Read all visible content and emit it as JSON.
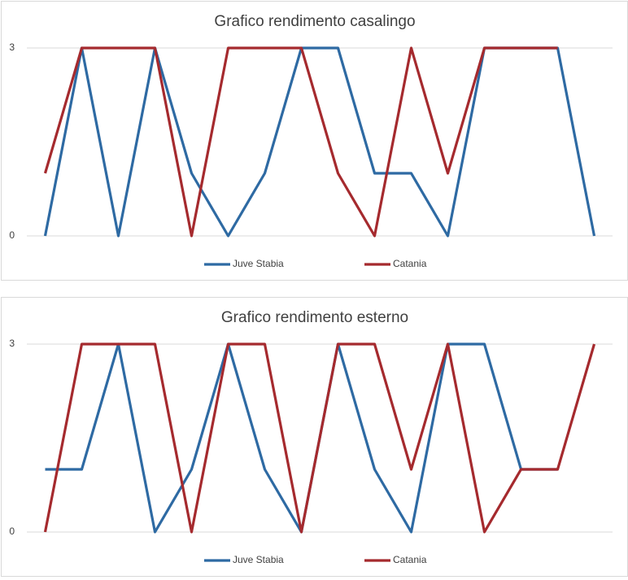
{
  "chart_data": [
    {
      "type": "line",
      "title": "Grafico rendimento casalingo",
      "categories": [
        null,
        null,
        null,
        null,
        null,
        null,
        null,
        null,
        null,
        null,
        null,
        null,
        null,
        null,
        null,
        null
      ],
      "series": [
        {
          "name": "Juve Stabia",
          "color": "#2e6aa3",
          "values": [
            0,
            3,
            0,
            3,
            1,
            0,
            1,
            3,
            3,
            1,
            1,
            0,
            3,
            3,
            3,
            0
          ]
        },
        {
          "name": "Catania",
          "color": "#a52a2e",
          "values": [
            1,
            3,
            3,
            3,
            0,
            3,
            3,
            3,
            1,
            0,
            3,
            1,
            3,
            3,
            3,
            null
          ]
        }
      ],
      "ylim": [
        0,
        3
      ],
      "yticks": [
        0,
        3
      ],
      "grid": true,
      "legend": "bottom"
    },
    {
      "type": "line",
      "title": "Grafico rendimento esterno",
      "categories": [
        null,
        null,
        null,
        null,
        null,
        null,
        null,
        null,
        null,
        null,
        null,
        null,
        null,
        null,
        null,
        null
      ],
      "series": [
        {
          "name": "Juve Stabia",
          "color": "#2e6aa3",
          "values": [
            1,
            1,
            3,
            0,
            1,
            3,
            1,
            0,
            3,
            1,
            0,
            3,
            3,
            1,
            1,
            null
          ]
        },
        {
          "name": "Catania",
          "color": "#a52a2e",
          "values": [
            0,
            3,
            3,
            3,
            0,
            3,
            3,
            0,
            3,
            3,
            1,
            3,
            0,
            1,
            1,
            3
          ]
        }
      ],
      "ylim": [
        0,
        3
      ],
      "yticks": [
        0,
        3
      ],
      "grid": true,
      "legend": "bottom"
    }
  ]
}
